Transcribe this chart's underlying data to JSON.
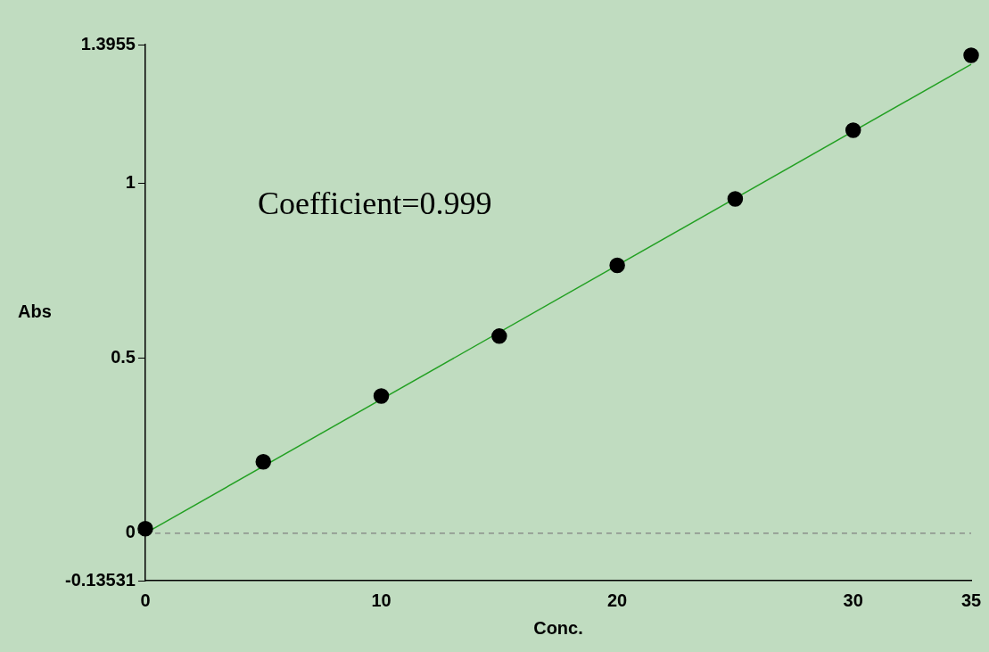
{
  "chart_data": {
    "type": "scatter",
    "xlabel": "Conc.",
    "ylabel": "Abs",
    "annotations": [
      "Coefficient=0.999"
    ],
    "series": [
      {
        "x": [
          0,
          5,
          10,
          15,
          20,
          25,
          30,
          35
        ],
        "values": [
          0.013,
          0.204,
          0.392,
          0.563,
          0.765,
          0.955,
          1.151,
          1.365
        ],
        "color": "#000000",
        "marker": "circle"
      },
      {
        "type": "line",
        "x": [
          0,
          35
        ],
        "values": [
          0,
          1.339
        ],
        "color": "#22a022",
        "marker": "none",
        "line_style": "solid"
      }
    ],
    "ref_lines": [
      {
        "axis": "y",
        "value": 0,
        "color": "#808080",
        "line_style": "dashed"
      }
    ],
    "xlim": [
      0,
      35
    ],
    "xticks": [
      0,
      10,
      20,
      30,
      35
    ],
    "ylim": [
      -0.13531,
      1.3955
    ],
    "yticks": [
      -0.13531,
      0,
      0.5,
      1,
      1.3955
    ],
    "grid": false,
    "legend": false
  }
}
